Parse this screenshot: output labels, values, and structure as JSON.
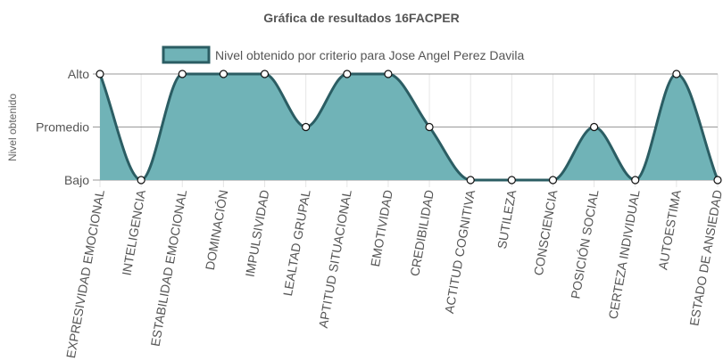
{
  "chart_data": {
    "type": "area",
    "title": "Gráfica de resultados 16FACPER",
    "ylabel": "Nivel obtenido",
    "xlabel": "",
    "y_levels": [
      "Bajo",
      "Promedio",
      "Alto"
    ],
    "ylim": [
      0,
      2
    ],
    "grid": true,
    "legend": {
      "position": "top",
      "label": "Nivel obtenido por criterio para Jose Angel Perez Davila"
    },
    "categories": [
      "EXPRESIVIDAD EMOCIONAL",
      "INTELIGENCIA",
      "ESTABILIDAD EMOCIONAL",
      "DOMINACIÓN",
      "IMPULSIVIDAD",
      "LEALTAD GRUPAL",
      "APTITUD SITUACIONAL",
      "EMOTIVIDAD",
      "CREDIBILIDAD",
      "ACTITUD COGNITIVA",
      "SUTILEZA",
      "CONSCIENCIA",
      "POSICIÓN SOCIAL",
      "CERTEZA INDIVIDUAL",
      "AUTOESTIMA",
      "ESTADO DE ANSIEDAD"
    ],
    "series": [
      {
        "name": "Nivel obtenido por criterio para Jose Angel Perez Davila",
        "values": [
          2,
          0,
          2,
          2,
          2,
          1,
          2,
          2,
          1,
          0,
          0,
          0,
          1,
          0,
          2,
          0
        ],
        "fill": "#70b3b7",
        "stroke": "#2b5d63"
      }
    ]
  }
}
